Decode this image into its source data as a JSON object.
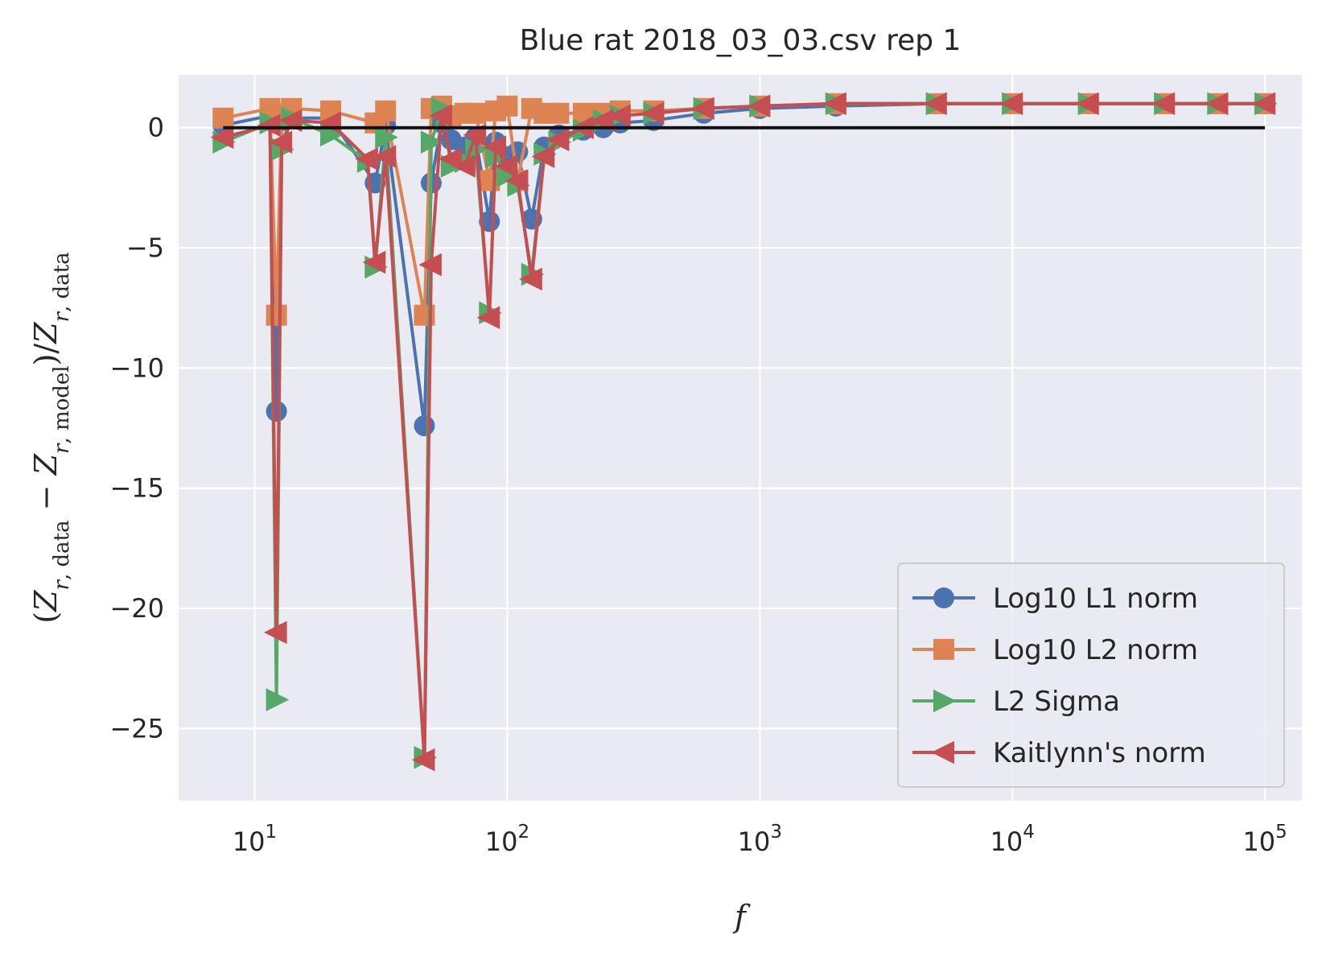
{
  "chart_data": {
    "type": "line",
    "title": "Blue rat 2018_03_03.csv rep 1",
    "xlabel": "f",
    "ylabel": "(Z_{r,data} − Z_{r,model})/Z_{r,data}",
    "xscale": "log",
    "xlim": [
      5,
      140000
    ],
    "ylim": [
      -28,
      2.2
    ],
    "xticks": [
      10,
      100,
      1000,
      10000,
      100000
    ],
    "xtick_labels": [
      {
        "base": "10",
        "exp": "1"
      },
      {
        "base": "10",
        "exp": "2"
      },
      {
        "base": "10",
        "exp": "3"
      },
      {
        "base": "10",
        "exp": "4"
      },
      {
        "base": "10",
        "exp": "5"
      }
    ],
    "yticks": [
      0,
      -5,
      -10,
      -15,
      -20,
      -25
    ],
    "ytick_labels": [
      "0",
      "−5",
      "−10",
      "−15",
      "−20",
      "−25"
    ],
    "grid": true,
    "legend_position": "lower-right",
    "reference_line": {
      "x": [
        7.5,
        100000
      ],
      "y": 0,
      "color": "#111111"
    },
    "series": [
      {
        "name": "Log10 L1 norm",
        "color": "#4c72b0",
        "marker": "circle",
        "x": [
          7.5,
          11.5,
          12.2,
          12.8,
          14,
          20,
          30,
          33,
          47,
          50,
          55,
          60,
          68,
          75,
          85,
          90,
          100,
          110,
          125,
          140,
          160,
          200,
          240,
          280,
          380,
          600,
          1000,
          2000,
          5000,
          10000,
          20000,
          40000,
          65000,
          100000
        ],
        "y": [
          0.1,
          0.5,
          -11.8,
          0.3,
          0.4,
          0.4,
          -2.3,
          0.1,
          -12.4,
          -2.3,
          0.2,
          -0.5,
          -0.8,
          -0.4,
          -3.9,
          -0.6,
          -1.2,
          -1.0,
          -3.8,
          -0.8,
          -0.3,
          -0.1,
          0.0,
          0.2,
          0.3,
          0.6,
          0.8,
          0.9,
          1.0,
          1.0,
          1.0,
          1.0,
          1.0,
          1.0
        ]
      },
      {
        "name": "Log10 L2 norm",
        "color": "#dd8452",
        "marker": "square",
        "x": [
          7.5,
          11.5,
          12.2,
          12.8,
          14,
          20,
          30,
          33,
          47,
          50,
          55,
          60,
          68,
          75,
          85,
          90,
          100,
          110,
          125,
          140,
          160,
          200,
          240,
          280,
          380,
          600,
          1000,
          2000,
          5000,
          10000,
          20000,
          40000,
          65000,
          100000
        ],
        "y": [
          0.4,
          0.8,
          -7.8,
          0.6,
          0.8,
          0.7,
          0.2,
          0.7,
          -7.8,
          0.8,
          0.9,
          0.5,
          0.6,
          0.6,
          -2.2,
          0.7,
          0.9,
          -2.2,
          0.8,
          0.6,
          0.6,
          0.6,
          0.6,
          0.7,
          0.7,
          0.8,
          0.9,
          1.0,
          1.0,
          1.0,
          1.0,
          1.0,
          1.0,
          1.0
        ]
      },
      {
        "name": "L2 Sigma",
        "color": "#55a868",
        "marker": "triangle-right",
        "x": [
          7.5,
          11.5,
          12.2,
          12.8,
          14,
          20,
          28,
          30,
          33,
          47,
          50,
          55,
          60,
          68,
          75,
          85,
          90,
          100,
          110,
          125,
          140,
          160,
          200,
          240,
          280,
          380,
          600,
          1000,
          2000,
          5000,
          10000,
          20000,
          40000,
          65000,
          100000
        ],
        "y": [
          -0.6,
          0.2,
          -23.8,
          -0.9,
          0.4,
          -0.3,
          -1.4,
          -5.8,
          -0.4,
          -26.2,
          -0.6,
          0.8,
          -1.6,
          -1.4,
          -0.9,
          -7.7,
          -1.2,
          -2.0,
          -2.4,
          -6.1,
          -1.1,
          -0.6,
          -0.1,
          0.3,
          0.5,
          0.6,
          0.8,
          0.9,
          1.0,
          1.0,
          1.0,
          1.0,
          1.0,
          1.0,
          1.0
        ]
      },
      {
        "name": "Kaitlynn's norm",
        "color": "#c44e52",
        "marker": "triangle-left",
        "x": [
          7.5,
          11.5,
          12.2,
          12.8,
          14,
          20,
          28,
          30,
          33,
          47,
          50,
          55,
          60,
          68,
          75,
          85,
          90,
          100,
          110,
          125,
          140,
          160,
          200,
          240,
          280,
          380,
          600,
          1000,
          2000,
          5000,
          10000,
          20000,
          40000,
          65000,
          100000
        ],
        "y": [
          -0.4,
          0.1,
          -21.0,
          -0.6,
          0.3,
          0.2,
          -1.3,
          -5.6,
          -1.2,
          -26.3,
          -5.7,
          0.5,
          -1.3,
          -1.6,
          -0.3,
          -7.9,
          -0.8,
          -1.6,
          -2.2,
          -6.3,
          -1.2,
          -0.5,
          0.0,
          0.3,
          0.5,
          0.6,
          0.8,
          0.9,
          1.0,
          1.0,
          1.0,
          1.0,
          1.0,
          1.0,
          1.0
        ]
      }
    ]
  }
}
